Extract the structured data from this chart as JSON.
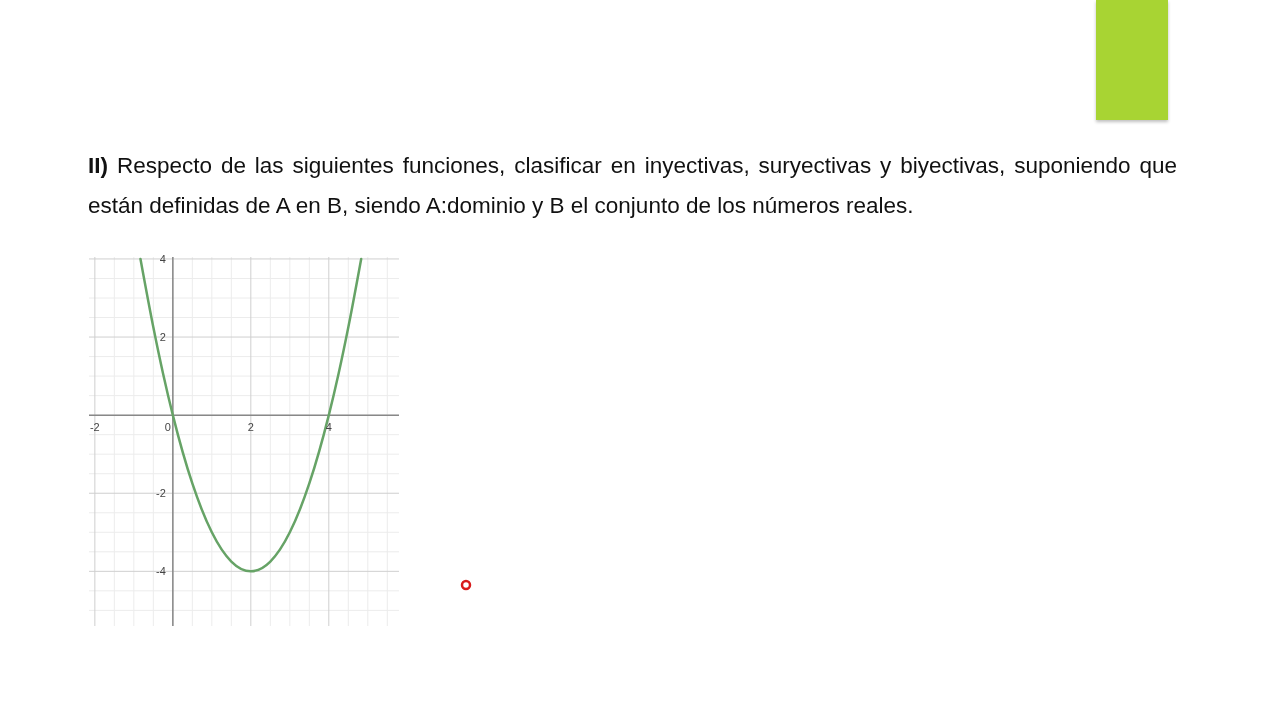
{
  "chart_data": {
    "type": "line",
    "title": "II) Respecto de las siguientes funciones, clasificar en inyectivas, suryectivas y biyectivas, suponiendo que están definidas de A en B, siendo A:dominio y B el conjunto de los números reales.",
    "x": [
      -0.83,
      -0.5,
      -0.25,
      0,
      0.5,
      1,
      1.5,
      2,
      2.5,
      3,
      3.5,
      4,
      4.25,
      4.5,
      4.83
    ],
    "values": [
      4,
      2.25,
      1.06,
      0,
      -1.75,
      -3,
      -3.75,
      -4,
      -3.75,
      -3,
      -1.75,
      0,
      1.06,
      2.25,
      4
    ],
    "color": "#66a366",
    "xlim": [
      -2.15,
      5.8
    ],
    "ylim": [
      -5.4,
      4.05
    ],
    "xticks": [
      -2,
      {
        "value": -1.5,
        "label": null
      },
      {
        "value": -1,
        "label": null
      },
      {
        "value": -0.5,
        "label": null
      },
      0,
      {
        "value": 0.5,
        "label": null
      },
      {
        "value": 1,
        "label": null
      },
      {
        "value": 1.5,
        "label": null
      },
      2,
      {
        "value": 2.5,
        "label": null
      },
      {
        "value": 3,
        "label": null
      },
      {
        "value": 3.5,
        "label": null
      },
      4,
      {
        "value": 4.5,
        "label": null
      },
      {
        "value": 5,
        "label": null
      },
      {
        "value": 5.5,
        "label": null
      }
    ],
    "yticks": [
      {
        "value": -5,
        "label": null
      },
      {
        "value": -4.5,
        "label": null
      },
      -4,
      {
        "value": -3.5,
        "label": null
      },
      {
        "value": -3,
        "label": null
      },
      {
        "value": -2.5,
        "label": null
      },
      -2,
      {
        "value": -1.5,
        "label": null
      },
      {
        "value": -1,
        "label": null
      },
      {
        "value": -0.5,
        "label": null
      },
      {
        "value": 0,
        "label": null
      },
      {
        "value": 0.5,
        "label": null
      },
      {
        "value": 1,
        "label": null
      },
      {
        "value": 1.5,
        "label": null
      },
      2,
      {
        "value": 2.5,
        "label": null
      },
      {
        "value": 3,
        "label": null
      },
      {
        "value": 3.5,
        "label": null
      },
      4
    ],
    "grid": true
  }
}
